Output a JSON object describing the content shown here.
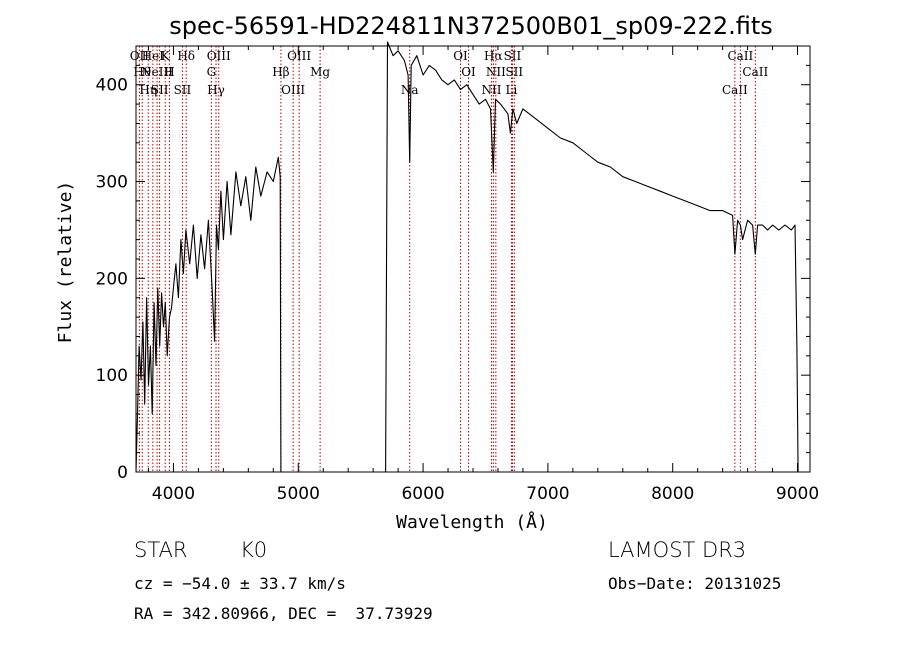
{
  "chart_data": {
    "type": "line",
    "title": "spec-56591-HD224811N372500B01_sp09-222.fits",
    "xlabel": "Wavelength (Å)",
    "ylabel": "Flux (relative)",
    "xlim": [
      3700,
      9100
    ],
    "ylim": [
      0,
      440
    ],
    "xticks": [
      4000,
      5000,
      6000,
      7000,
      8000,
      9000
    ],
    "yticks": [
      0,
      100,
      200,
      300,
      400
    ],
    "xtick_labels": [
      "4000",
      "5000",
      "6000",
      "7000",
      "8000",
      "9000"
    ],
    "ytick_labels": [
      "0",
      "100",
      "200",
      "300",
      "400"
    ],
    "grid": false,
    "series": [
      {
        "name": "spectrum",
        "x": [
          3700,
          3712,
          3725,
          3740,
          3755,
          3770,
          3785,
          3800,
          3815,
          3830,
          3845,
          3860,
          3875,
          3890,
          3905,
          3920,
          3935,
          3950,
          3968,
          3985,
          4000,
          4020,
          4040,
          4060,
          4080,
          4100,
          4130,
          4160,
          4190,
          4220,
          4250,
          4280,
          4310,
          4330,
          4345,
          4360,
          4380,
          4400,
          4430,
          4460,
          4500,
          4540,
          4580,
          4620,
          4660,
          4700,
          4750,
          4800,
          4840,
          4855,
          4861,
          4866,
          4880,
          4900,
          5000,
          5200,
          5500,
          5700,
          5715,
          5728,
          5760,
          5800,
          5850,
          5880,
          5893,
          5905,
          5950,
          6000,
          6050,
          6100,
          6150,
          6200,
          6250,
          6300,
          6350,
          6400,
          6450,
          6500,
          6540,
          6563,
          6580,
          6620,
          6680,
          6700,
          6720,
          6750,
          6800,
          6900,
          7000,
          7100,
          7200,
          7300,
          7400,
          7500,
          7600,
          7700,
          7800,
          7900,
          8000,
          8100,
          8200,
          8300,
          8400,
          8480,
          8498,
          8520,
          8542,
          8560,
          8600,
          8640,
          8662,
          8680,
          8720,
          8760,
          8800,
          8850,
          8900,
          8950,
          8980,
          8995,
          9005
        ],
        "y": [
          0,
          60,
          130,
          95,
          155,
          70,
          180,
          90,
          130,
          60,
          175,
          110,
          190,
          130,
          185,
          150,
          175,
          120,
          160,
          170,
          190,
          215,
          180,
          240,
          205,
          250,
          215,
          255,
          200,
          245,
          210,
          260,
          190,
          135,
          255,
          230,
          290,
          240,
          300,
          245,
          310,
          275,
          305,
          260,
          315,
          285,
          310,
          300,
          325,
          305,
          0,
          0,
          0,
          0,
          0,
          0,
          0,
          0,
          445,
          440,
          430,
          435,
          425,
          410,
          320,
          420,
          430,
          410,
          420,
          415,
          405,
          400,
          405,
          395,
          400,
          390,
          380,
          385,
          375,
          310,
          385,
          380,
          370,
          350,
          375,
          360,
          375,
          365,
          355,
          345,
          340,
          330,
          320,
          315,
          305,
          300,
          295,
          290,
          285,
          280,
          275,
          270,
          270,
          265,
          225,
          260,
          255,
          240,
          260,
          255,
          225,
          255,
          255,
          250,
          255,
          250,
          255,
          250,
          255,
          130,
          0
        ]
      }
    ],
    "line_markers": [
      {
        "wavelength": 3727,
        "label": "OII"
      },
      {
        "wavelength": 3750,
        "label": "Hθ"
      },
      {
        "wavelength": 3798,
        "label": "Hη"
      },
      {
        "wavelength": 3835,
        "label": "HeI"
      },
      {
        "wavelength": 3869,
        "label": "NeIII"
      },
      {
        "wavelength": 3889,
        "label": "SII"
      },
      {
        "wavelength": 3934,
        "label": "K"
      },
      {
        "wavelength": 3968,
        "label": "H"
      },
      {
        "wavelength": 4072,
        "label": "SII"
      },
      {
        "wavelength": 4102,
        "label": "Hδ"
      },
      {
        "wavelength": 4304,
        "label": "G"
      },
      {
        "wavelength": 4341,
        "label": "Hγ"
      },
      {
        "wavelength": 4363,
        "label": "OIII"
      },
      {
        "wavelength": 4861,
        "label": "Hβ"
      },
      {
        "wavelength": 4959,
        "label": "OIII"
      },
      {
        "wavelength": 5007,
        "label": "OIII"
      },
      {
        "wavelength": 5175,
        "label": "Mg"
      },
      {
        "wavelength": 5893,
        "label": "Na"
      },
      {
        "wavelength": 6300,
        "label": "OI"
      },
      {
        "wavelength": 6364,
        "label": "OI"
      },
      {
        "wavelength": 6548,
        "label": "NII"
      },
      {
        "wavelength": 6563,
        "label": "Hα"
      },
      {
        "wavelength": 6583,
        "label": "NII"
      },
      {
        "wavelength": 6708,
        "label": "Li"
      },
      {
        "wavelength": 6716,
        "label": "SII"
      },
      {
        "wavelength": 6731,
        "label": "SII"
      },
      {
        "wavelength": 8498,
        "label": "CaII"
      },
      {
        "wavelength": 8542,
        "label": "CaII"
      },
      {
        "wavelength": 8662,
        "label": "CaII"
      }
    ]
  },
  "info": {
    "class": "STAR",
    "subclass": "K0",
    "survey": "LAMOST DR3",
    "redshift": "cz = −54.0 ± 33.7 km/s",
    "obs_date": "Obs−Date: 20131025",
    "coords": "RA = 342.80966, DEC =  37.73929"
  },
  "colors": {
    "spectrum": "#000000",
    "marker": "#b30000",
    "axis": "#000000"
  }
}
